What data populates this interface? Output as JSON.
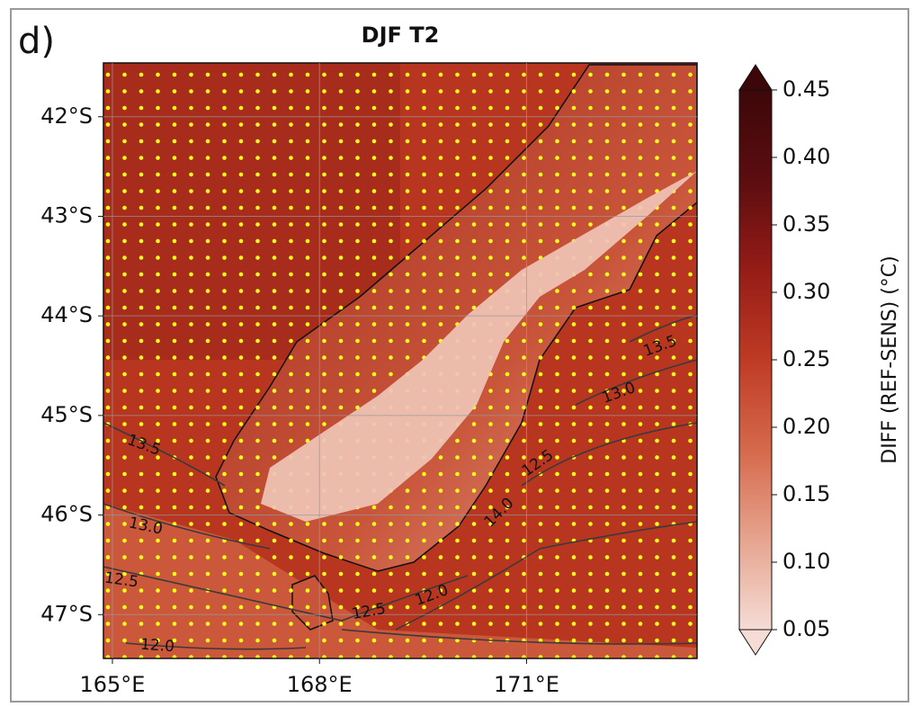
{
  "panel_label": "d)",
  "title": "DJF T2",
  "map": {
    "xlim": [
      164.87,
      173.47
    ],
    "ylim": [
      -47.44,
      -41.46
    ],
    "xticks": [
      {
        "value": 165,
        "label": "165°E"
      },
      {
        "value": 168,
        "label": "168°E"
      },
      {
        "value": 171,
        "label": "171°E"
      }
    ],
    "yticks": [
      {
        "value": -42,
        "label": "42°S"
      },
      {
        "value": -43,
        "label": "43°S"
      },
      {
        "value": -44,
        "label": "44°S"
      },
      {
        "value": -45,
        "label": "45°S"
      },
      {
        "value": -46,
        "label": "46°S"
      },
      {
        "value": -47,
        "label": "47°S"
      }
    ],
    "grid": true,
    "stipple_color": "#ffff1a"
  },
  "contour_labels": [
    "13.5",
    "13.0",
    "12.5",
    "12.0",
    "12.5",
    "12.0",
    "12.5",
    "13.0",
    "13.5",
    "14.0"
  ],
  "colorbar": {
    "label": "DIFF (REF-SENS) (°C)",
    "range": [
      0.05,
      0.45
    ],
    "extend": "both",
    "colors": [
      "#f5dcd5",
      "#e6a48f",
      "#d5694b",
      "#bf3a24",
      "#951c17",
      "#5c0d10",
      "#3d0709"
    ],
    "ticks": [
      0.05,
      {
        "value": 0.1,
        "label": "0.10"
      },
      0.15,
      {
        "value": 0.2,
        "label": "0.20"
      },
      0.25,
      {
        "value": 0.3,
        "label": "0.30"
      },
      0.35,
      {
        "value": 0.4,
        "label": "0.40"
      },
      0.45
    ]
  }
}
